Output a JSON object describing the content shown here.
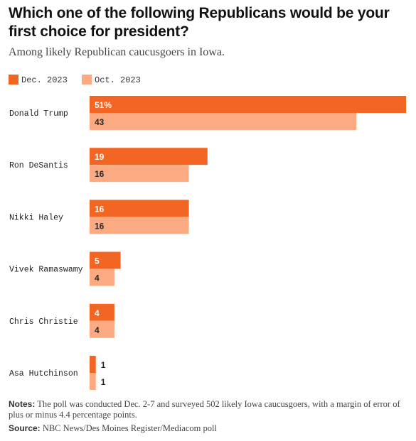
{
  "title": "Which one of the following Republicans would be your first choice for president?",
  "subtitle": "Among likely Republican caucusgoers in Iowa.",
  "legend": [
    {
      "label": "Dec. 2023",
      "color": "#f26522"
    },
    {
      "label": "Oct. 2023",
      "color": "#fcaa82"
    }
  ],
  "chart_data": {
    "type": "bar",
    "orientation": "horizontal",
    "categories": [
      "Donald Trump",
      "Ron DeSantis",
      "Nikki Haley",
      "Vivek Ramaswamy",
      "Chris Christie",
      "Asa Hutchinson"
    ],
    "series": [
      {
        "name": "Dec. 2023",
        "color": "#f26522",
        "values": [
          51,
          19,
          16,
          5,
          4,
          1
        ],
        "labels": [
          "51%",
          "19",
          "16",
          "5",
          "4",
          "1"
        ]
      },
      {
        "name": "Oct. 2023",
        "color": "#fcaa82",
        "values": [
          43,
          16,
          16,
          4,
          4,
          1
        ],
        "labels": [
          "43",
          "16",
          "16",
          "4",
          "4",
          "1"
        ]
      }
    ],
    "xlim": [
      0,
      51
    ],
    "grid": false,
    "legend_position": "top-left"
  },
  "notes": {
    "label": "Notes:",
    "text": "The poll was conducted Dec. 2-7 and surveyed 502 likely Iowa caucusgoers, with a margin of error of plus or minus 4.4 percentage points."
  },
  "source": {
    "label": "Source:",
    "text": "NBC News/Des Moines Register/Mediacom poll"
  }
}
